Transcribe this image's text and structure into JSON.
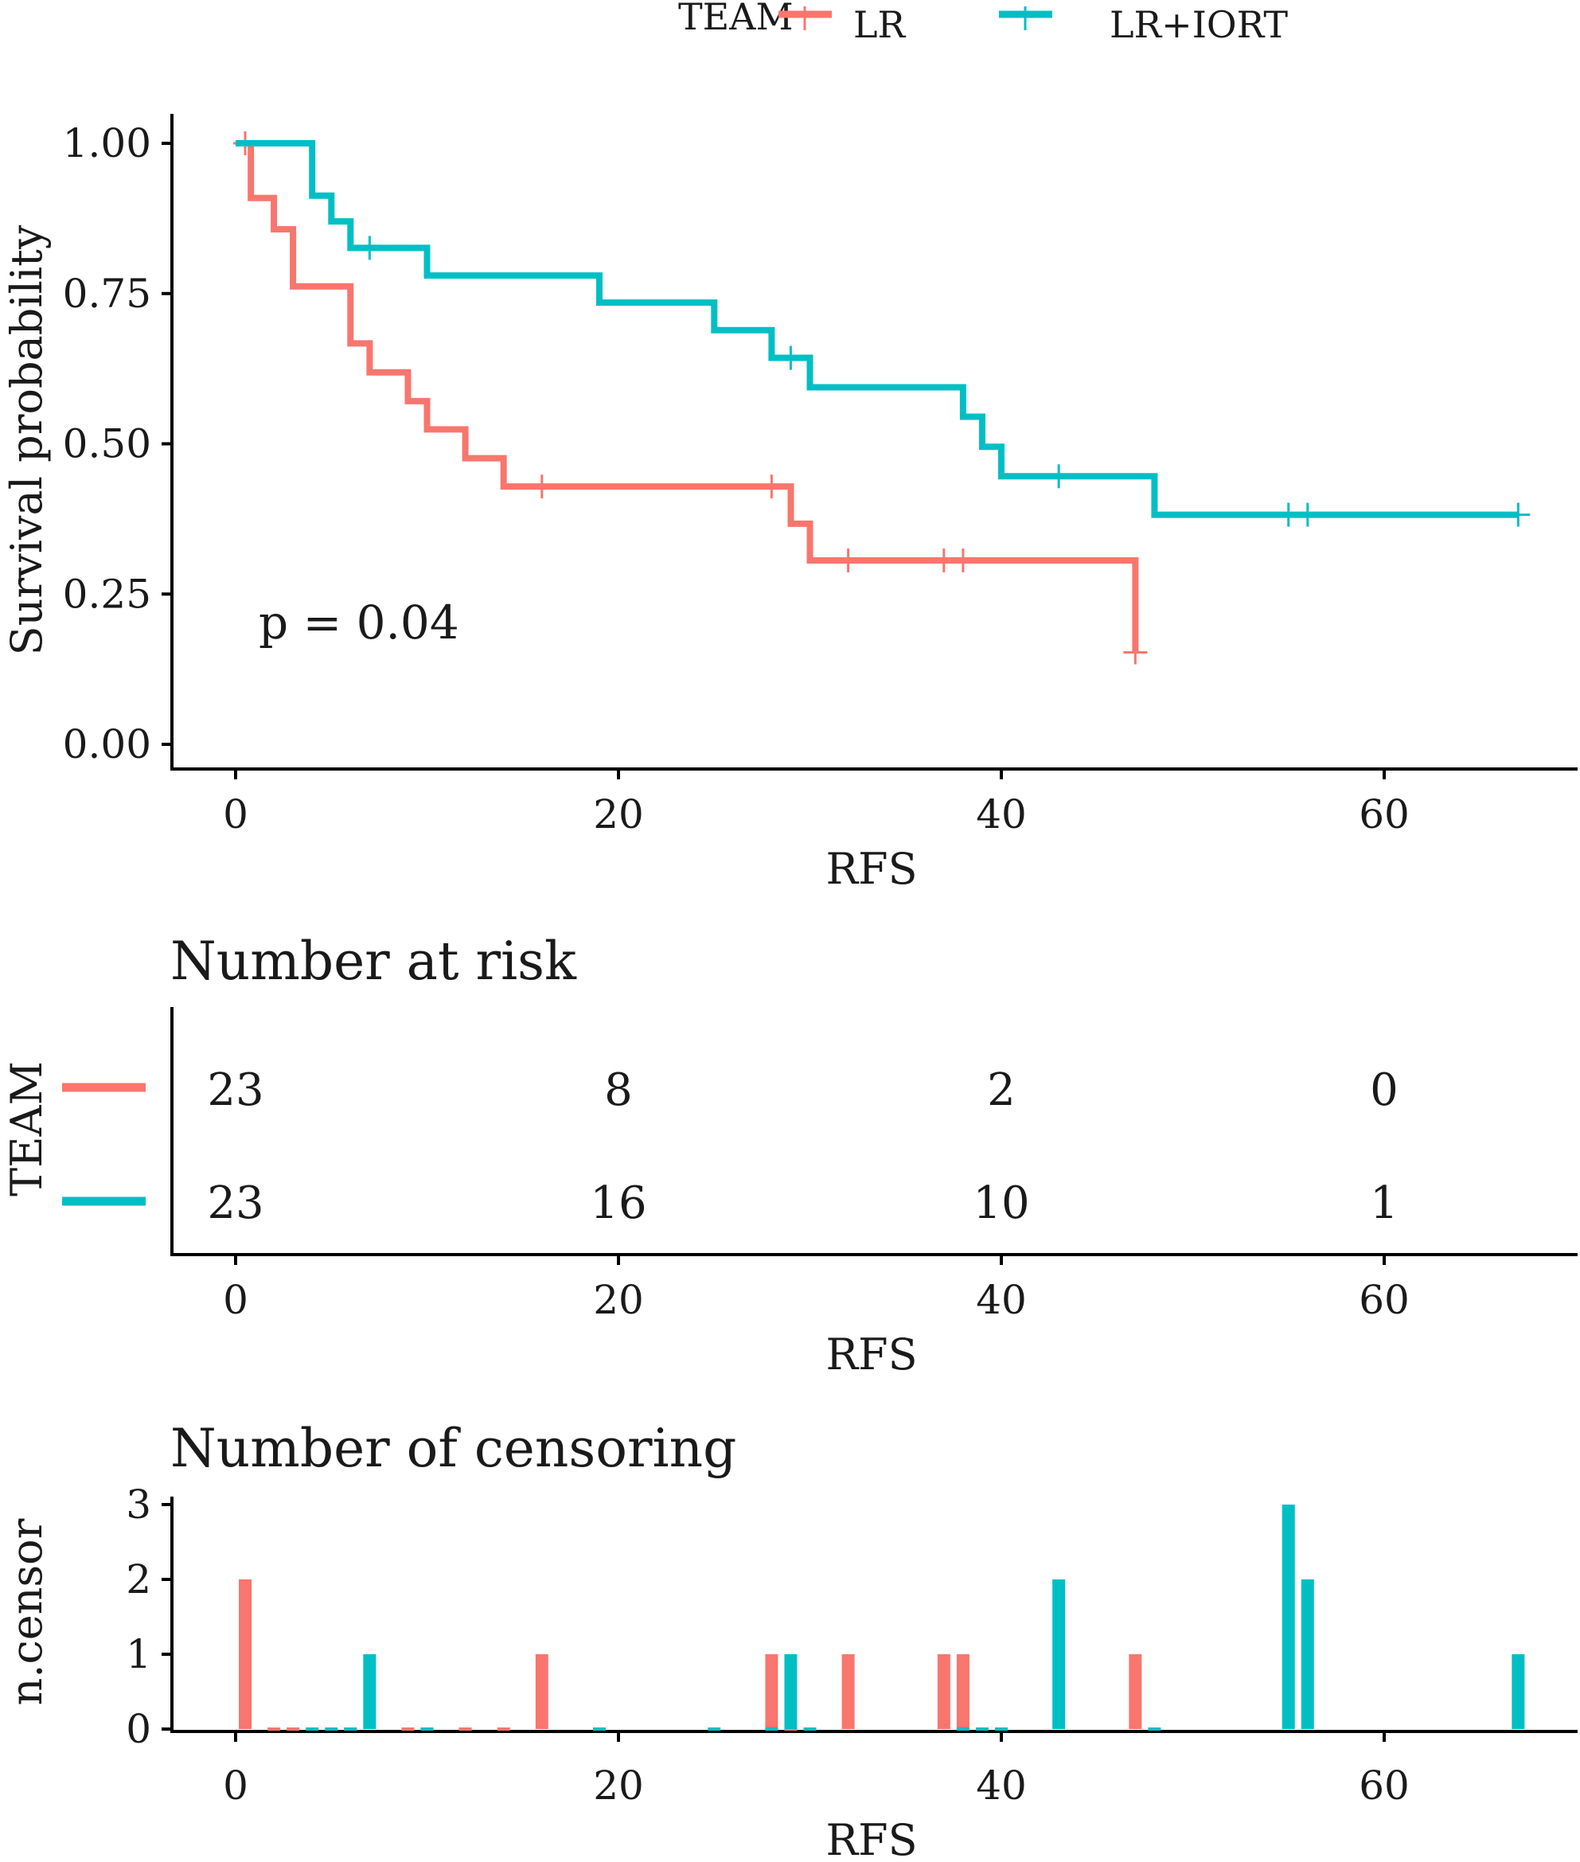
{
  "colors": {
    "LR": "#F8766D",
    "LR+IORT": "#00BFC4"
  },
  "legend": {
    "title": "TEAM",
    "items": [
      "LR",
      "LR+IORT"
    ]
  },
  "chart_data": [
    {
      "type": "line",
      "subtype": "kaplan-meier step curve",
      "xlabel": "RFS",
      "ylabel": "Survival probability",
      "xlim": [
        -3.5,
        70
      ],
      "ylim": [
        0,
        1
      ],
      "xticks": [
        "0",
        "20",
        "40",
        "60"
      ],
      "yticks": [
        "0.00",
        "0.25",
        "0.50",
        "0.75",
        "1.00"
      ],
      "annotation": "p = 0.04",
      "legend_position": "top",
      "series": [
        {
          "name": "LR",
          "steps": [
            {
              "x": 0,
              "y": 1.0
            },
            {
              "x": 0.8,
              "y": 1.0
            },
            {
              "x": 0.8,
              "y": 0.909
            },
            {
              "x": 2,
              "y": 0.909
            },
            {
              "x": 2,
              "y": 0.857
            },
            {
              "x": 3,
              "y": 0.857
            },
            {
              "x": 3,
              "y": 0.762
            },
            {
              "x": 6,
              "y": 0.762
            },
            {
              "x": 6,
              "y": 0.667
            },
            {
              "x": 7,
              "y": 0.667
            },
            {
              "x": 7,
              "y": 0.619
            },
            {
              "x": 9,
              "y": 0.619
            },
            {
              "x": 9,
              "y": 0.571
            },
            {
              "x": 10,
              "y": 0.571
            },
            {
              "x": 10,
              "y": 0.524
            },
            {
              "x": 12,
              "y": 0.524
            },
            {
              "x": 12,
              "y": 0.476
            },
            {
              "x": 14,
              "y": 0.476
            },
            {
              "x": 14,
              "y": 0.429
            },
            {
              "x": 29,
              "y": 0.429
            },
            {
              "x": 29,
              "y": 0.367
            },
            {
              "x": 30,
              "y": 0.367
            },
            {
              "x": 30,
              "y": 0.306
            },
            {
              "x": 47,
              "y": 0.306
            },
            {
              "x": 47,
              "y": 0.153
            }
          ],
          "censored": [
            {
              "x": 0.5,
              "y": 1.0
            },
            {
              "x": 16,
              "y": 0.429
            },
            {
              "x": 28,
              "y": 0.429
            },
            {
              "x": 32,
              "y": 0.306
            },
            {
              "x": 37,
              "y": 0.306
            },
            {
              "x": 38,
              "y": 0.306
            },
            {
              "x": 47,
              "y": 0.153
            }
          ]
        },
        {
          "name": "LR+IORT",
          "steps": [
            {
              "x": 0,
              "y": 1.0
            },
            {
              "x": 4,
              "y": 1.0
            },
            {
              "x": 4,
              "y": 0.913
            },
            {
              "x": 5,
              "y": 0.913
            },
            {
              "x": 5,
              "y": 0.87
            },
            {
              "x": 6,
              "y": 0.87
            },
            {
              "x": 6,
              "y": 0.826
            },
            {
              "x": 10,
              "y": 0.826
            },
            {
              "x": 10,
              "y": 0.78
            },
            {
              "x": 19,
              "y": 0.78
            },
            {
              "x": 19,
              "y": 0.735
            },
            {
              "x": 25,
              "y": 0.735
            },
            {
              "x": 25,
              "y": 0.689
            },
            {
              "x": 28,
              "y": 0.689
            },
            {
              "x": 28,
              "y": 0.643
            },
            {
              "x": 30,
              "y": 0.643
            },
            {
              "x": 30,
              "y": 0.594
            },
            {
              "x": 38,
              "y": 0.594
            },
            {
              "x": 38,
              "y": 0.545
            },
            {
              "x": 39,
              "y": 0.545
            },
            {
              "x": 39,
              "y": 0.495
            },
            {
              "x": 40,
              "y": 0.495
            },
            {
              "x": 40,
              "y": 0.446
            },
            {
              "x": 48,
              "y": 0.446
            },
            {
              "x": 48,
              "y": 0.382
            },
            {
              "x": 67,
              "y": 0.382
            }
          ],
          "censored": [
            {
              "x": 7,
              "y": 0.826
            },
            {
              "x": 29,
              "y": 0.643
            },
            {
              "x": 43,
              "y": 0.446
            },
            {
              "x": 55,
              "y": 0.382
            },
            {
              "x": 56,
              "y": 0.382
            },
            {
              "x": 67,
              "y": 0.382
            }
          ]
        }
      ]
    },
    {
      "type": "table",
      "title": "Number at risk",
      "ylabel": "TEAM",
      "xlabel": "RFS",
      "x": [
        0,
        20,
        40,
        60
      ],
      "xticks": [
        "0",
        "20",
        "40",
        "60"
      ],
      "series": [
        {
          "name": "LR",
          "values": [
            "23",
            "8",
            "2",
            "0"
          ]
        },
        {
          "name": "LR+IORT",
          "values": [
            "23",
            "16",
            "10",
            "1"
          ]
        }
      ]
    },
    {
      "type": "bar",
      "title": "Number of censoring",
      "xlabel": "RFS",
      "ylabel": "n.censor",
      "xlim": [
        -3.5,
        70
      ],
      "ylim": [
        0,
        3
      ],
      "xticks": [
        "0",
        "20",
        "40",
        "60"
      ],
      "yticks": [
        "0",
        "1",
        "2",
        "3"
      ],
      "series": [
        {
          "name": "LR",
          "x": [
            0.5,
            16,
            28,
            32,
            37,
            38,
            47
          ],
          "values": [
            2,
            1,
            1,
            1,
            1,
            1,
            1
          ],
          "zero_x": [
            2,
            3,
            6,
            9,
            10,
            12,
            14,
            29,
            30
          ]
        },
        {
          "name": "LR+IORT",
          "x": [
            7,
            29,
            43,
            55,
            56,
            67
          ],
          "values": [
            1,
            1,
            2,
            3,
            2,
            1
          ],
          "zero_x": [
            4,
            5,
            6,
            10,
            19,
            25,
            28,
            30,
            38,
            39,
            40,
            48
          ]
        }
      ]
    }
  ]
}
